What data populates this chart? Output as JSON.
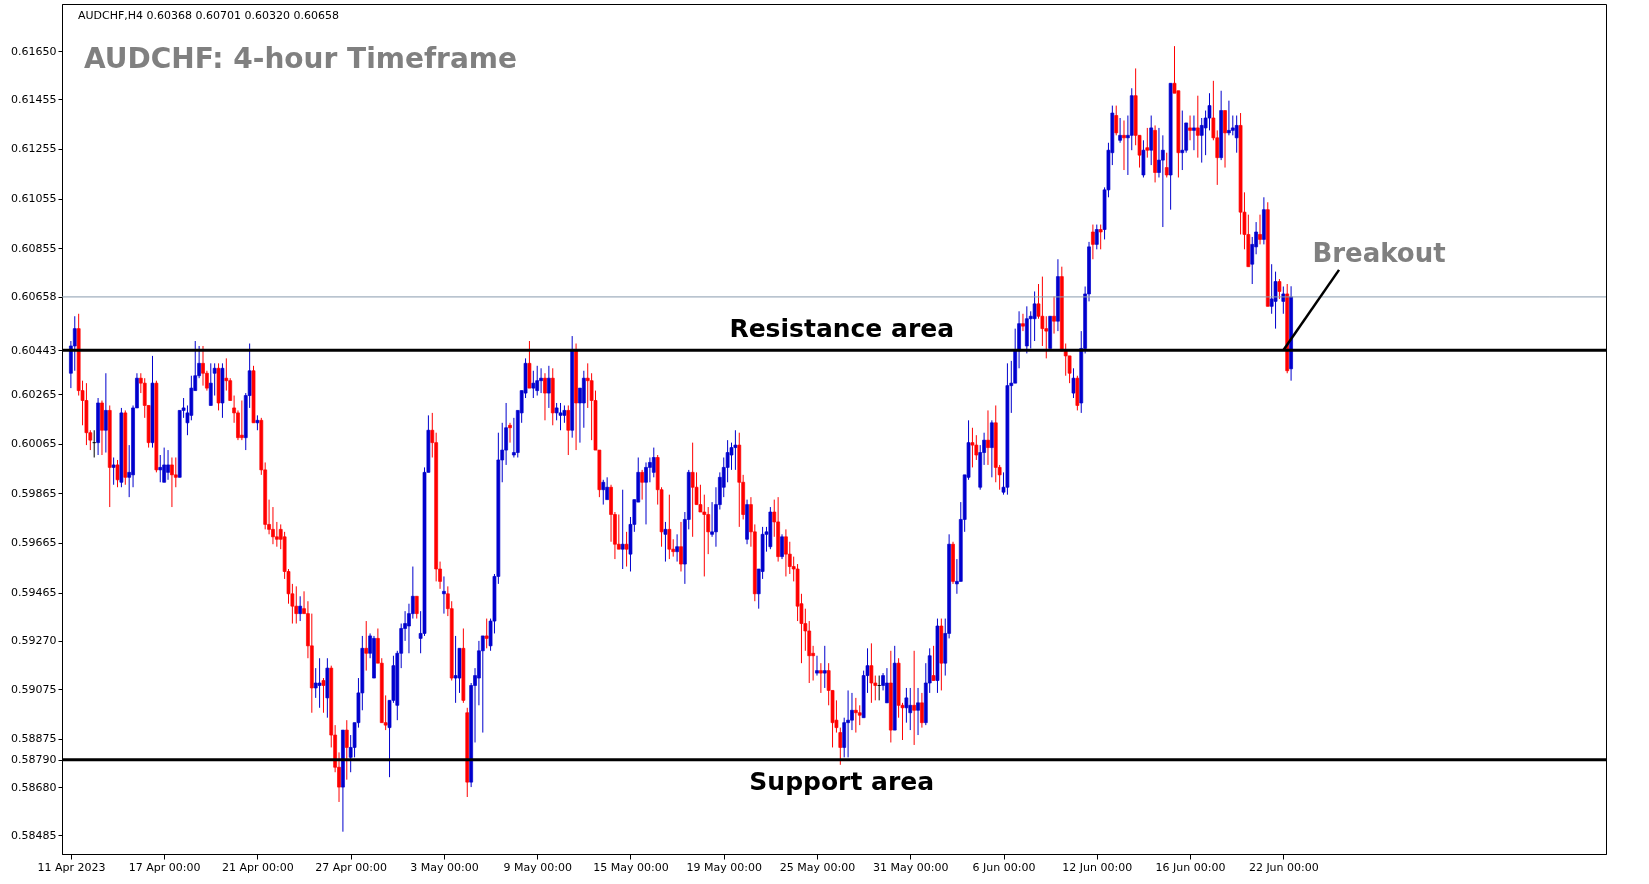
{
  "chart_data": {
    "type": "candlestick",
    "title": "AUDCHF: 4-hour Timeframe",
    "subtitle": "AUDCHF,H4  0.60368 0.60701 0.60320 0.60658",
    "categories": [
      "11 Apr 2023",
      null,
      null,
      null,
      null,
      null,
      null,
      null,
      null,
      null,
      null,
      null,
      null,
      null,
      null,
      null,
      null,
      null,
      null,
      null,
      null,
      null,
      null,
      null,
      "17 Apr 00:00",
      null,
      null,
      null,
      null,
      null,
      null,
      null,
      null,
      null,
      null,
      null,
      null,
      null,
      null,
      null,
      null,
      null,
      null,
      null,
      null,
      null,
      null,
      null,
      "21 Apr 00:00",
      null,
      null,
      null,
      null,
      null,
      null,
      null,
      null,
      null,
      null,
      null,
      null,
      null,
      null,
      null,
      null,
      null,
      null,
      null,
      null,
      null,
      null,
      null,
      "27 Apr 00:00",
      null,
      null,
      null,
      null,
      null,
      null,
      null,
      null,
      null,
      null,
      null,
      null,
      null,
      null,
      null,
      null,
      null,
      null,
      null,
      null,
      null,
      null,
      null,
      "3 May 00:00",
      null,
      null,
      null,
      null,
      null,
      null,
      null,
      null,
      null,
      null,
      null,
      null,
      null,
      null,
      null,
      null,
      null,
      null,
      null,
      null,
      null,
      null,
      null,
      "9 May 00:00",
      null,
      null,
      null,
      null,
      null,
      null,
      null,
      null,
      null,
      null,
      null,
      null,
      null,
      null,
      null,
      null,
      null,
      null,
      null,
      null,
      null,
      null,
      null,
      "15 May 00:00",
      null,
      null,
      null,
      null,
      null,
      null,
      null,
      null,
      null,
      null,
      null,
      null,
      null,
      null,
      null,
      null,
      null,
      null,
      null,
      null,
      null,
      null,
      null,
      "19 May 00:00",
      null,
      null,
      null,
      null,
      null,
      null,
      null,
      null,
      null,
      null,
      null,
      null,
      null,
      null,
      null,
      null,
      null,
      null,
      null,
      null,
      null,
      null,
      null,
      "25 May 00:00",
      null,
      null,
      null,
      null,
      null,
      null,
      null,
      null,
      null,
      null,
      null,
      null,
      null,
      null,
      null,
      null,
      null,
      null,
      null,
      null,
      null,
      null,
      null,
      "31 May 00:00",
      null,
      null,
      null,
      null,
      null,
      null,
      null,
      null,
      null,
      null,
      null,
      null,
      null,
      null,
      null,
      null,
      null,
      null,
      null,
      null,
      null,
      null,
      null,
      "6 Jun 00:00",
      null,
      null,
      null,
      null,
      null,
      null,
      null,
      null,
      null,
      null,
      null,
      null,
      null,
      null,
      null,
      null,
      null,
      null,
      null,
      null,
      null,
      null,
      null,
      "12 Jun 00:00",
      null,
      null,
      null,
      null,
      null,
      null,
      null,
      null,
      null,
      null,
      null,
      null,
      null,
      null,
      null,
      null,
      null,
      null,
      null,
      null,
      null,
      null,
      null,
      "16 Jun 00:00",
      null,
      null,
      null,
      null,
      null,
      null,
      null,
      null,
      null,
      null,
      null,
      null,
      null,
      null,
      null,
      null,
      null,
      null,
      null,
      null,
      null,
      null,
      null,
      "22 Jun 00:00",
      null,
      null
    ],
    "ohlc": [
      [
        0.6035,
        0.6048,
        0.6029,
        0.6046
      ],
      [
        0.6046,
        0.6058,
        0.6036,
        0.6053
      ],
      [
        0.6053,
        0.6059,
        0.6026,
        0.6028
      ],
      [
        0.6028,
        0.6032,
        0.6014,
        0.6024
      ],
      [
        0.6024,
        0.6031,
        0.6006,
        0.6011
      ],
      [
        0.6011,
        0.6012,
        0.6004,
        0.6008
      ],
      [
        0.6007,
        0.6012,
        0.6001,
        0.6007
      ],
      [
        0.6007,
        0.6025,
        0.6002,
        0.6023
      ],
      [
        0.6023,
        0.6024,
        0.6002,
        0.6012
      ],
      [
        0.6012,
        0.6035,
        0.6003,
        0.602
      ],
      [
        0.602,
        0.6022,
        0.5981,
        0.5997
      ],
      [
        0.5997,
        0.6001,
        0.599,
        0.5998
      ],
      [
        0.5998,
        0.6,
        0.5989,
        0.5992
      ],
      [
        0.5991,
        0.6021,
        0.5989,
        0.6019
      ],
      [
        0.6019,
        0.602,
        0.599,
        0.5993
      ],
      [
        0.5993,
        0.6006,
        0.5985,
        0.5995
      ],
      [
        0.5994,
        0.6022,
        0.5989,
        0.6021
      ],
      [
        0.6021,
        0.6035,
        0.6021,
        0.6033
      ],
      [
        0.6033,
        0.6035,
        0.6027,
        0.6031
      ],
      [
        0.6031,
        0.6033,
        0.6017,
        0.6022
      ],
      [
        0.6022,
        0.6022,
        0.6005,
        0.6007
      ],
      [
        0.6007,
        0.6042,
        0.6005,
        0.6031
      ],
      [
        0.6031,
        0.6032,
        0.5995,
        0.5996
      ],
      [
        0.5996,
        0.6002,
        0.5991,
        0.5997
      ],
      [
        0.5991,
        0.6005,
        0.5991,
        0.5998
      ],
      [
        0.5995,
        0.6004,
        0.5992,
        0.5998
      ],
      [
        0.5998,
        0.6001,
        0.5981,
        0.5994
      ],
      [
        0.5994,
        0.6001,
        0.5989,
        0.5993
      ],
      [
        0.5993,
        0.602,
        0.5993,
        0.602
      ],
      [
        0.602,
        0.6025,
        0.6017,
        0.6021
      ],
      [
        0.6015,
        0.6022,
        0.601,
        0.6019
      ],
      [
        0.6018,
        0.6034,
        0.6016,
        0.6029
      ],
      [
        0.6028,
        0.6048,
        0.6028,
        0.6034
      ],
      [
        0.6034,
        0.6046,
        0.6033,
        0.6039
      ],
      [
        0.6039,
        0.6046,
        0.603,
        0.6035
      ],
      [
        0.6035,
        0.6036,
        0.6028,
        0.6029
      ],
      [
        0.6022,
        0.6039,
        0.6022,
        0.6031
      ],
      [
        0.6035,
        0.6039,
        0.6026,
        0.6037
      ],
      [
        0.6037,
        0.6039,
        0.602,
        0.6023
      ],
      [
        0.6023,
        0.6039,
        0.6017,
        0.6037
      ],
      [
        0.6033,
        0.6041,
        0.6028,
        0.6032
      ],
      [
        0.6032,
        0.6033,
        0.6024,
        0.6024
      ],
      [
        0.6021,
        0.6026,
        0.6015,
        0.6019
      ],
      [
        0.6019,
        0.602,
        0.6008,
        0.6009
      ],
      [
        0.601,
        0.6024,
        0.6008,
        0.6009
      ],
      [
        0.6009,
        0.6027,
        0.6004,
        0.6026
      ],
      [
        0.6026,
        0.6047,
        0.6021,
        0.6036
      ],
      [
        0.6036,
        0.6038,
        0.6015,
        0.6015
      ],
      [
        0.6015,
        0.6018,
        0.6012,
        0.6016
      ],
      [
        0.6016,
        0.6017,
        0.5994,
        0.5996
      ],
      [
        0.5996,
        0.5999,
        0.5972,
        0.5974
      ],
      [
        0.5974,
        0.5984,
        0.597,
        0.5972
      ],
      [
        0.5972,
        0.5981,
        0.5966,
        0.5969
      ],
      [
        0.5969,
        0.5975,
        0.5965,
        0.5968
      ],
      [
        0.5972,
        0.5974,
        0.5964,
        0.5968
      ],
      [
        0.5969,
        0.5971,
        0.5952,
        0.5955
      ],
      [
        0.5955,
        0.5956,
        0.5942,
        0.5946
      ],
      [
        0.5946,
        0.595,
        0.5934,
        0.5941
      ],
      [
        0.5941,
        0.5949,
        0.5934,
        0.5938
      ],
      [
        0.5938,
        0.5945,
        0.5935,
        0.5941
      ],
      [
        0.594,
        0.5947,
        0.5938,
        0.5938
      ],
      [
        0.5938,
        0.5943,
        0.592,
        0.5925
      ],
      [
        0.5925,
        0.5938,
        0.5898,
        0.5908
      ],
      [
        0.5908,
        0.5916,
        0.5904,
        0.591
      ],
      [
        0.5909,
        0.592,
        0.59,
        0.591
      ],
      [
        0.5911,
        0.5912,
        0.5898,
        0.5909
      ],
      [
        0.5904,
        0.592,
        0.5896,
        0.5916
      ],
      [
        0.5916,
        0.5917,
        0.5884,
        0.5889
      ],
      [
        0.5889,
        0.5893,
        0.5874,
        0.5876
      ],
      [
        0.5876,
        0.5882,
        0.5862,
        0.5868
      ],
      [
        0.5868,
        0.5891,
        0.585,
        0.5891
      ],
      [
        0.5891,
        0.5895,
        0.5871,
        0.5884
      ],
      [
        0.588,
        0.5889,
        0.5874,
        0.5884
      ],
      [
        0.5884,
        0.5894,
        0.588,
        0.5894
      ],
      [
        0.5894,
        0.5912,
        0.5892,
        0.5906
      ],
      [
        0.5906,
        0.5929,
        0.5899,
        0.5924
      ],
      [
        0.5924,
        0.5935,
        0.5915,
        0.5922
      ],
      [
        0.5922,
        0.593,
        0.592,
        0.5929
      ],
      [
        0.5912,
        0.5929,
        0.5912,
        0.5928
      ],
      [
        0.5928,
        0.5932,
        0.5918,
        0.5918
      ],
      [
        0.5918,
        0.592,
        0.5894,
        0.5894
      ],
      [
        0.5894,
        0.5905,
        0.5891,
        0.5893
      ],
      [
        0.5892,
        0.5903,
        0.5872,
        0.5903
      ],
      [
        0.5903,
        0.5921,
        0.5902,
        0.5917
      ],
      [
        0.5901,
        0.5923,
        0.5895,
        0.5922
      ],
      [
        0.5922,
        0.5934,
        0.5916,
        0.5932
      ],
      [
        0.5932,
        0.5939,
        0.5927,
        0.5934
      ],
      [
        0.5933,
        0.5942,
        0.5922,
        0.5938
      ],
      [
        0.5938,
        0.5957,
        0.5936,
        0.5945
      ],
      [
        0.5945,
        0.5945,
        0.5936,
        0.5938
      ],
      [
        0.5928,
        0.5939,
        0.5922,
        0.593
      ],
      [
        0.593,
        0.5997,
        0.5929,
        0.5995
      ],
      [
        0.5995,
        0.6018,
        0.5995,
        0.6012
      ],
      [
        0.6012,
        0.6019,
        0.6001,
        0.6007
      ],
      [
        0.6007,
        0.6011,
        0.5951,
        0.5956
      ],
      [
        0.5956,
        0.5959,
        0.5948,
        0.5951
      ],
      [
        0.5946,
        0.5953,
        0.5938,
        0.5947
      ],
      [
        0.5946,
        0.5949,
        0.5937,
        0.594
      ],
      [
        0.594,
        0.5943,
        0.5911,
        0.5912
      ],
      [
        0.5912,
        0.5929,
        0.5902,
        0.5913
      ],
      [
        0.5912,
        0.5924,
        0.5906,
        0.5924
      ],
      [
        0.5924,
        0.5932,
        0.5902,
        0.5903
      ],
      [
        0.5898,
        0.59,
        0.5864,
        0.587
      ],
      [
        0.587,
        0.591,
        0.5868,
        0.5909
      ],
      [
        0.5909,
        0.5916,
        0.5886,
        0.5913
      ],
      [
        0.5912,
        0.5927,
        0.5901,
        0.5923
      ],
      [
        0.5923,
        0.5929,
        0.589,
        0.5929
      ],
      [
        0.5929,
        0.5936,
        0.5924,
        0.5928
      ],
      [
        0.5925,
        0.5936,
        0.5923,
        0.5935
      ],
      [
        0.5935,
        0.5954,
        0.593,
        0.5953
      ],
      [
        0.5953,
        0.6011,
        0.595,
        0.6
      ],
      [
        0.6,
        0.6015,
        0.5991,
        0.6004
      ],
      [
        0.6004,
        0.6023,
        0.5998,
        0.6013
      ],
      [
        0.6014,
        0.6015,
        0.6007,
        0.6013
      ],
      [
        0.6002,
        0.6017,
        0.6001,
        0.6003
      ],
      [
        0.6003,
        0.602,
        0.6001,
        0.602
      ],
      [
        0.6019,
        0.6028,
        0.6015,
        0.6028
      ],
      [
        0.6027,
        0.6041,
        0.6025,
        0.6039
      ],
      [
        0.6039,
        0.6048,
        0.6029,
        0.6029
      ],
      [
        0.6029,
        0.6036,
        0.6025,
        0.6031
      ],
      [
        0.6028,
        0.6038,
        0.6026,
        0.6032
      ],
      [
        0.6032,
        0.6037,
        0.6027,
        0.6033
      ],
      [
        0.6033,
        0.6035,
        0.6016,
        0.6027
      ],
      [
        0.6027,
        0.6038,
        0.6021,
        0.6033
      ],
      [
        0.6033,
        0.6037,
        0.6014,
        0.6019
      ],
      [
        0.6019,
        0.6023,
        0.6016,
        0.6021
      ],
      [
        0.6018,
        0.6023,
        0.6012,
        0.6019
      ],
      [
        0.6018,
        0.6022,
        0.6015,
        0.602
      ],
      [
        0.602,
        0.6022,
        0.6002,
        0.6012
      ],
      [
        0.6012,
        0.605,
        0.6009,
        0.6044
      ],
      [
        0.6044,
        0.6047,
        0.6004,
        0.6023
      ],
      [
        0.6023,
        0.6029,
        0.6007,
        0.6029
      ],
      [
        0.6023,
        0.6036,
        0.6013,
        0.6033
      ],
      [
        0.6033,
        0.6039,
        0.6021,
        0.6032
      ],
      [
        0.6032,
        0.6035,
        0.6008,
        0.6024
      ],
      [
        0.6024,
        0.6028,
        0.6004,
        0.6004
      ],
      [
        0.6004,
        0.6004,
        0.5985,
        0.5988
      ],
      [
        0.5988,
        0.5992,
        0.5982,
        0.5991
      ],
      [
        0.5984,
        0.5993,
        0.5984,
        0.5989
      ],
      [
        0.5989,
        0.599,
        0.5967,
        0.5978
      ],
      [
        0.5978,
        0.5979,
        0.596,
        0.5966
      ],
      [
        0.5966,
        0.5978,
        0.5964,
        0.5964
      ],
      [
        0.5964,
        0.5988,
        0.5956,
        0.5966
      ],
      [
        0.5966,
        0.5971,
        0.5957,
        0.5964
      ],
      [
        0.5962,
        0.5977,
        0.5955,
        0.5974
      ],
      [
        0.5974,
        0.5984,
        0.5971,
        0.5984
      ],
      [
        0.5983,
        0.6001,
        0.5983,
        0.5995
      ],
      [
        0.5995,
        0.5996,
        0.5984,
        0.5991
      ],
      [
        0.5991,
        0.5999,
        0.5974,
        0.5997
      ],
      [
        0.5997,
        0.6001,
        0.5991,
        0.5999
      ],
      [
        0.5995,
        0.6005,
        0.5993,
        0.6001
      ],
      [
        0.6001,
        0.6002,
        0.5982,
        0.5988
      ],
      [
        0.5988,
        0.5989,
        0.5965,
        0.5971
      ],
      [
        0.597,
        0.5975,
        0.5959,
        0.5972
      ],
      [
        0.5972,
        0.5986,
        0.596,
        0.5964
      ],
      [
        0.5964,
        0.5968,
        0.5961,
        0.5963
      ],
      [
        0.5963,
        0.597,
        0.5959,
        0.5965
      ],
      [
        0.5965,
        0.5975,
        0.5955,
        0.5958
      ],
      [
        0.5958,
        0.5979,
        0.595,
        0.5976
      ],
      [
        0.5976,
        0.5996,
        0.5972,
        0.5995
      ],
      [
        0.5995,
        0.6007,
        0.5969,
        0.5989
      ],
      [
        0.5989,
        0.5995,
        0.5982,
        0.5982
      ],
      [
        0.5982,
        0.599,
        0.5979,
        0.5979
      ],
      [
        0.5979,
        0.5986,
        0.5953,
        0.5978
      ],
      [
        0.5978,
        0.5981,
        0.5962,
        0.5971
      ],
      [
        0.597,
        0.5983,
        0.5969,
        0.5971
      ],
      [
        0.5971,
        0.5989,
        0.5965,
        0.5982
      ],
      [
        0.5982,
        0.5995,
        0.598,
        0.5993
      ],
      [
        0.5989,
        0.6001,
        0.5985,
        0.5997
      ],
      [
        0.5997,
        0.6008,
        0.5991,
        0.6003
      ],
      [
        0.6002,
        0.6007,
        0.5996,
        0.6005
      ],
      [
        0.6005,
        0.6012,
        0.5996,
        0.6006
      ],
      [
        0.6006,
        0.6011,
        0.5973,
        0.5991
      ],
      [
        0.5991,
        0.5994,
        0.5976,
        0.5978
      ],
      [
        0.5968,
        0.5984,
        0.5966,
        0.5982
      ],
      [
        0.5982,
        0.5985,
        0.5965,
        0.5971
      ],
      [
        0.5971,
        0.5974,
        0.5943,
        0.5946
      ],
      [
        0.5946,
        0.5956,
        0.594,
        0.5956
      ],
      [
        0.5955,
        0.5973,
        0.5952,
        0.597
      ],
      [
        0.597,
        0.5973,
        0.5963,
        0.5971
      ],
      [
        0.5965,
        0.5981,
        0.5964,
        0.5979
      ],
      [
        0.5979,
        0.5984,
        0.5969,
        0.5975
      ],
      [
        0.5975,
        0.5985,
        0.5959,
        0.5961
      ],
      [
        0.5961,
        0.597,
        0.596,
        0.5969
      ],
      [
        0.5969,
        0.5972,
        0.5953,
        0.5962
      ],
      [
        0.5962,
        0.5967,
        0.5954,
        0.5957
      ],
      [
        0.5957,
        0.5961,
        0.5951,
        0.5956
      ],
      [
        0.5956,
        0.5958,
        0.5935,
        0.5941
      ],
      [
        0.5942,
        0.5946,
        0.5918,
        0.5934
      ],
      [
        0.5934,
        0.594,
        0.5923,
        0.5931
      ],
      [
        0.5931,
        0.5935,
        0.591,
        0.5921
      ],
      [
        0.5922,
        0.5925,
        0.5911,
        0.5921
      ],
      [
        0.5914,
        0.5921,
        0.5913,
        0.5915
      ],
      [
        0.5915,
        0.5918,
        0.5906,
        0.5914
      ],
      [
        0.5914,
        0.5925,
        0.5908,
        0.5915
      ],
      [
        0.5915,
        0.5918,
        0.5901,
        0.5907
      ],
      [
        0.5907,
        0.5907,
        0.5884,
        0.5894
      ],
      [
        0.5895,
        0.5903,
        0.589,
        0.5892
      ],
      [
        0.589,
        0.5892,
        0.5877,
        0.5884
      ],
      [
        0.5884,
        0.5896,
        0.588,
        0.5894
      ],
      [
        0.5894,
        0.5907,
        0.588,
        0.5895
      ],
      [
        0.5895,
        0.5906,
        0.5891,
        0.5899
      ],
      [
        0.5899,
        0.5904,
        0.589,
        0.5898
      ],
      [
        0.5898,
        0.5901,
        0.5893,
        0.5897
      ],
      [
        0.5896,
        0.5915,
        0.5896,
        0.5913
      ],
      [
        0.5913,
        0.5924,
        0.5906,
        0.5917
      ],
      [
        0.5917,
        0.5926,
        0.5902,
        0.591
      ],
      [
        0.591,
        0.5913,
        0.5903,
        0.5909
      ],
      [
        0.5909,
        0.5913,
        0.5903,
        0.5909
      ],
      [
        0.5909,
        0.5914,
        0.5907,
        0.5913
      ],
      [
        0.5902,
        0.5916,
        0.5902,
        0.591
      ],
      [
        0.591,
        0.5923,
        0.5886,
        0.5891
      ],
      [
        0.5891,
        0.5925,
        0.5891,
        0.5918
      ],
      [
        0.5918,
        0.592,
        0.5896,
        0.5901
      ],
      [
        0.5901,
        0.5902,
        0.5887,
        0.59
      ],
      [
        0.59,
        0.5908,
        0.5894,
        0.5904
      ],
      [
        0.5898,
        0.5908,
        0.5891,
        0.5901
      ],
      [
        0.5901,
        0.5923,
        0.5885,
        0.5899
      ],
      [
        0.5899,
        0.5908,
        0.5889,
        0.5902
      ],
      [
        0.5902,
        0.5906,
        0.5892,
        0.5894
      ],
      [
        0.5894,
        0.5918,
        0.5893,
        0.591
      ],
      [
        0.591,
        0.5924,
        0.5906,
        0.5921
      ],
      [
        0.5913,
        0.5925,
        0.5911,
        0.5911
      ],
      [
        0.5911,
        0.5936,
        0.5906,
        0.5933
      ],
      [
        0.5933,
        0.5936,
        0.5907,
        0.5918
      ],
      [
        0.5918,
        0.5936,
        0.5913,
        0.593
      ],
      [
        0.593,
        0.597,
        0.5928,
        0.5966
      ],
      [
        0.5966,
        0.5967,
        0.595,
        0.5951
      ],
      [
        0.595,
        0.596,
        0.5946,
        0.5951
      ],
      [
        0.5951,
        0.5983,
        0.5951,
        0.5976
      ],
      [
        0.5976,
        0.5994,
        0.5971,
        0.5994
      ],
      [
        0.5993,
        0.6016,
        0.5992,
        0.6007
      ],
      [
        0.6007,
        0.6013,
        0.5997,
        0.6006
      ],
      [
        0.6006,
        0.601,
        0.6,
        0.6002
      ],
      [
        0.5989,
        0.6006,
        0.5988,
        0.6003
      ],
      [
        0.6003,
        0.6011,
        0.5998,
        0.6008
      ],
      [
        0.6008,
        0.602,
        0.5998,
        0.6005
      ],
      [
        0.6005,
        0.6016,
        0.5993,
        0.6015
      ],
      [
        0.6015,
        0.6022,
        0.5991,
        0.5997
      ],
      [
        0.5997,
        0.5998,
        0.5988,
        0.5994
      ],
      [
        0.5987,
        0.5995,
        0.5986,
        0.5989
      ],
      [
        0.5989,
        0.6039,
        0.5986,
        0.603
      ],
      [
        0.603,
        0.604,
        0.6019,
        0.6031
      ],
      [
        0.6031,
        0.6053,
        0.6031,
        0.6044
      ],
      [
        0.6044,
        0.606,
        0.6037,
        0.6055
      ],
      [
        0.6055,
        0.6059,
        0.6052,
        0.6054
      ],
      [
        0.6046,
        0.6062,
        0.6043,
        0.6057
      ],
      [
        0.6057,
        0.606,
        0.6045,
        0.6058
      ],
      [
        0.6057,
        0.6068,
        0.6048,
        0.6063
      ],
      [
        0.6063,
        0.6071,
        0.6057,
        0.6058
      ],
      [
        0.6058,
        0.6074,
        0.6046,
        0.6053
      ],
      [
        0.6053,
        0.6058,
        0.6041,
        0.6052
      ],
      [
        0.6045,
        0.6058,
        0.6045,
        0.6058
      ],
      [
        0.6058,
        0.6066,
        0.6051,
        0.6056
      ],
      [
        0.6056,
        0.6081,
        0.6052,
        0.6074
      ],
      [
        0.6074,
        0.6078,
        0.6044,
        0.6044
      ],
      [
        0.6044,
        0.6047,
        0.6034,
        0.6042
      ],
      [
        0.6042,
        0.6042,
        0.6031,
        0.6035
      ],
      [
        0.6027,
        0.6037,
        0.6025,
        0.6033
      ],
      [
        0.6033,
        0.6034,
        0.602,
        0.6022
      ],
      [
        0.6023,
        0.6052,
        0.6019,
        0.6045
      ],
      [
        0.6045,
        0.607,
        0.6043,
        0.6067
      ],
      [
        0.6067,
        0.6088,
        0.6064,
        0.6086
      ],
      [
        0.6092,
        0.6095,
        0.6081,
        0.6087
      ],
      [
        0.6087,
        0.6095,
        0.6085,
        0.6093
      ],
      [
        0.6093,
        0.6095,
        0.6085,
        0.6092
      ],
      [
        0.6093,
        0.611,
        0.6089,
        0.6109
      ],
      [
        0.6109,
        0.6128,
        0.6106,
        0.6125
      ],
      [
        0.6124,
        0.6143,
        0.6119,
        0.614
      ],
      [
        0.6139,
        0.6143,
        0.6131,
        0.6132
      ],
      [
        0.6129,
        0.6138,
        0.6128,
        0.6131
      ],
      [
        0.6131,
        0.6137,
        0.6117,
        0.613
      ],
      [
        0.613,
        0.6139,
        0.6115,
        0.6131
      ],
      [
        0.6131,
        0.615,
        0.6125,
        0.6147
      ],
      [
        0.6147,
        0.6158,
        0.6127,
        0.6131
      ],
      [
        0.6131,
        0.6131,
        0.6118,
        0.6123
      ],
      [
        0.6115,
        0.6129,
        0.6114,
        0.6125
      ],
      [
        0.6126,
        0.6134,
        0.6122,
        0.6125
      ],
      [
        0.6125,
        0.6139,
        0.6119,
        0.6134
      ],
      [
        0.6133,
        0.6135,
        0.6112,
        0.6116
      ],
      [
        0.6116,
        0.6134,
        0.6114,
        0.6121
      ],
      [
        0.6121,
        0.6131,
        0.6094,
        0.6125
      ],
      [
        0.6118,
        0.6124,
        0.6114,
        0.6115
      ],
      [
        0.6115,
        0.6152,
        0.6101,
        0.6152
      ],
      [
        0.6152,
        0.6167,
        0.6148,
        0.6148
      ],
      [
        0.6149,
        0.6149,
        0.6114,
        0.6124
      ],
      [
        0.6124,
        0.6141,
        0.6117,
        0.6125
      ],
      [
        0.6125,
        0.6136,
        0.6124,
        0.6136
      ],
      [
        0.6134,
        0.6139,
        0.6129,
        0.6133
      ],
      [
        0.6133,
        0.6139,
        0.6125,
        0.6134
      ],
      [
        0.6134,
        0.6147,
        0.6122,
        0.6131
      ],
      [
        0.6131,
        0.6138,
        0.612,
        0.6135
      ],
      [
        0.6134,
        0.6141,
        0.6123,
        0.6138
      ],
      [
        0.6138,
        0.6148,
        0.6133,
        0.6143
      ],
      [
        0.6138,
        0.6153,
        0.6129,
        0.613
      ],
      [
        0.613,
        0.6133,
        0.6111,
        0.6122
      ],
      [
        0.6122,
        0.6149,
        0.6121,
        0.6141
      ],
      [
        0.6141,
        0.6141,
        0.6118,
        0.6132
      ],
      [
        0.6132,
        0.6145,
        0.6131,
        0.6133
      ],
      [
        0.6133,
        0.6139,
        0.6131,
        0.6134
      ],
      [
        0.613,
        0.6139,
        0.6124,
        0.6135
      ],
      [
        0.6135,
        0.614,
        0.6091,
        0.61
      ],
      [
        0.61,
        0.6108,
        0.6085,
        0.6091
      ],
      [
        0.6091,
        0.6099,
        0.6078,
        0.6078
      ],
      [
        0.6079,
        0.609,
        0.6071,
        0.6087
      ],
      [
        0.6086,
        0.6096,
        0.6083,
        0.6092
      ],
      [
        0.6091,
        0.6099,
        0.6087,
        0.6089
      ],
      [
        0.6089,
        0.6106,
        0.6087,
        0.6101
      ],
      [
        0.6101,
        0.6104,
        0.6062,
        0.6062
      ],
      [
        0.6062,
        0.6079,
        0.6059,
        0.6065
      ],
      [
        0.6064,
        0.6076,
        0.6053,
        0.6072
      ],
      [
        0.6072,
        0.6073,
        0.6065,
        0.6068
      ],
      [
        0.6064,
        0.607,
        0.6059,
        0.6067
      ],
      [
        0.6067,
        0.6071,
        0.6035,
        0.6036
      ],
      [
        0.60368,
        0.60701,
        0.6032,
        0.60658
      ]
    ],
    "colors": [
      "#0000cd",
      "#0000cd",
      "#ff0000",
      "#ff0000",
      "#ff0000",
      "#ff0000",
      "#000000",
      "#0000cd",
      "#ff0000",
      "#0000cd",
      "#ff0000",
      "#0000cd",
      "#ff0000",
      "#0000cd",
      "#ff0000",
      "#0000cd",
      "#0000cd",
      "#0000cd",
      "#ff0000",
      "#ff0000",
      "#ff0000",
      "#0000cd",
      "#ff0000",
      "#0000cd",
      "#0000cd",
      "#0000cd",
      "#ff0000",
      "#ff0000",
      "#0000cd",
      "#0000cd",
      "#0000cd",
      "#0000cd",
      "#0000cd",
      "#0000cd",
      "#ff0000",
      "#ff0000",
      "#0000cd",
      "#0000cd",
      "#ff0000",
      "#0000cd",
      "#ff0000",
      "#ff0000",
      "#ff0000",
      "#ff0000",
      "#ff0000",
      "#0000cd",
      "#0000cd",
      "#ff0000",
      "#0000cd",
      "#ff0000",
      "#ff0000",
      "#ff0000",
      "#ff0000",
      "#ff0000",
      "#ff0000",
      "#ff0000",
      "#ff0000",
      "#ff0000",
      "#ff0000",
      "#0000cd",
      "#ff0000",
      "#ff0000",
      "#ff0000",
      "#0000cd",
      "#0000cd",
      "#ff0000",
      "#0000cd",
      "#ff0000",
      "#ff0000",
      "#ff0000",
      "#0000cd",
      "#ff0000",
      "#0000cd",
      "#0000cd",
      "#0000cd",
      "#0000cd",
      "#ff0000",
      "#0000cd",
      "#0000cd",
      "#ff0000",
      "#ff0000",
      "#ff0000",
      "#0000cd",
      "#0000cd",
      "#0000cd",
      "#0000cd",
      "#0000cd",
      "#0000cd",
      "#0000cd",
      "#ff0000",
      "#0000cd",
      "#0000cd",
      "#0000cd",
      "#ff0000",
      "#ff0000",
      "#ff0000",
      "#0000cd",
      "#ff0000",
      "#ff0000",
      "#0000cd",
      "#0000cd",
      "#ff0000",
      "#ff0000",
      "#0000cd",
      "#0000cd",
      "#0000cd",
      "#0000cd",
      "#ff0000",
      "#0000cd",
      "#0000cd",
      "#0000cd",
      "#0000cd",
      "#0000cd",
      "#ff0000",
      "#0000cd",
      "#0000cd",
      "#0000cd",
      "#0000cd",
      "#ff0000",
      "#0000cd",
      "#0000cd",
      "#0000cd",
      "#ff0000",
      "#0000cd",
      "#ff0000",
      "#0000cd",
      "#0000cd",
      "#0000cd",
      "#ff0000",
      "#0000cd",
      "#ff0000",
      "#0000cd",
      "#0000cd",
      "#ff0000",
      "#ff0000",
      "#ff0000",
      "#ff0000",
      "#0000cd",
      "#0000cd",
      "#ff0000",
      "#ff0000",
      "#ff0000",
      "#0000cd",
      "#ff0000",
      "#0000cd",
      "#0000cd",
      "#0000cd",
      "#ff0000",
      "#0000cd",
      "#0000cd",
      "#0000cd",
      "#ff0000",
      "#ff0000",
      "#0000cd",
      "#ff0000",
      "#ff0000",
      "#0000cd",
      "#ff0000",
      "#0000cd",
      "#0000cd",
      "#ff0000",
      "#ff0000",
      "#ff0000",
      "#ff0000",
      "#ff0000",
      "#0000cd",
      "#0000cd",
      "#0000cd",
      "#0000cd",
      "#0000cd",
      "#0000cd",
      "#0000cd",
      "#ff0000",
      "#ff0000",
      "#0000cd",
      "#ff0000",
      "#ff0000",
      "#0000cd",
      "#0000cd",
      "#0000cd",
      "#0000cd",
      "#ff0000",
      "#ff0000",
      "#0000cd",
      "#ff0000",
      "#ff0000",
      "#ff0000",
      "#ff0000",
      "#ff0000",
      "#ff0000",
      "#ff0000",
      "#ff0000",
      "#0000cd",
      "#ff0000",
      "#0000cd",
      "#ff0000",
      "#ff0000",
      "#ff0000",
      "#ff0000",
      "#0000cd",
      "#0000cd",
      "#0000cd",
      "#ff0000",
      "#ff0000",
      "#0000cd",
      "#0000cd",
      "#ff0000",
      "#ff0000",
      "#000000",
      "#0000cd",
      "#0000cd",
      "#ff0000",
      "#0000cd",
      "#ff0000",
      "#ff0000",
      "#0000cd",
      "#0000cd",
      "#ff0000",
      "#0000cd",
      "#ff0000",
      "#0000cd",
      "#0000cd",
      "#ff0000",
      "#0000cd",
      "#ff0000",
      "#0000cd",
      "#0000cd",
      "#ff0000",
      "#0000cd",
      "#0000cd",
      "#0000cd",
      "#0000cd",
      "#ff0000",
      "#ff0000",
      "#0000cd",
      "#0000cd",
      "#ff0000",
      "#0000cd",
      "#ff0000",
      "#ff0000",
      "#0000cd",
      "#0000cd",
      "#0000cd",
      "#0000cd",
      "#0000cd",
      "#ff0000",
      "#0000cd",
      "#0000cd",
      "#0000cd",
      "#ff0000",
      "#ff0000",
      "#ff0000",
      "#0000cd",
      "#ff0000",
      "#0000cd",
      "#ff0000",
      "#ff0000",
      "#ff0000",
      "#0000cd",
      "#ff0000",
      "#0000cd",
      "#0000cd",
      "#0000cd",
      "#ff0000",
      "#0000cd",
      "#ff0000",
      "#0000cd",
      "#0000cd",
      "#0000cd",
      "#ff0000",
      "#0000cd",
      "#ff0000",
      "#0000cd",
      "#0000cd",
      "#ff0000",
      "#ff0000",
      "#0000cd",
      "#ff0000",
      "#0000cd",
      "#ff0000",
      "#0000cd",
      "#0000cd",
      "#ff0000",
      "#0000cd",
      "#ff0000",
      "#ff0000",
      "#0000cd",
      "#0000cd",
      "#ff0000",
      "#0000cd",
      "#ff0000",
      "#0000cd",
      "#0000cd",
      "#0000cd",
      "#ff0000",
      "#ff0000",
      "#0000cd",
      "#ff0000",
      "#0000cd",
      "#0000cd",
      "#0000cd",
      "#ff0000",
      "#ff0000",
      "#ff0000",
      "#0000cd",
      "#0000cd",
      "#ff0000",
      "#0000cd",
      "#ff0000",
      "#0000cd",
      "#0000cd",
      "#ff0000",
      "#0000cd",
      "#ff0000",
      "#0000cd"
    ],
    "ylim": [
      0.5841,
      0.6184
    ],
    "yticks": [
      {
        "value": 0.6165,
        "label": "0.61650"
      },
      0.61455,
      0.61255,
      0.61055,
      0.60855,
      0.60658,
      0.60443,
      0.60265,
      0.60065,
      0.59865,
      0.59665,
      0.59465,
      {
        "value": 0.5927,
        "label": "0.59270"
      },
      0.59075,
      0.58875,
      {
        "value": 0.5879,
        "label": "0.58790"
      },
      {
        "value": 0.5868,
        "label": "0.58680"
      },
      0.58485
    ],
    "ref_lines": [
      {
        "axis": "y",
        "value": 0.60658,
        "color": "#8a9bae"
      },
      {
        "axis": "y",
        "value": 0.60443,
        "label": "Resistance area",
        "color": "#000000"
      },
      {
        "axis": "y",
        "value": 0.5879,
        "label": "Support area",
        "color": "#000000"
      }
    ],
    "annotations": [
      {
        "text": "Breakout",
        "x": "22 Jun 00:00",
        "y": 0.60443
      }
    ]
  }
}
